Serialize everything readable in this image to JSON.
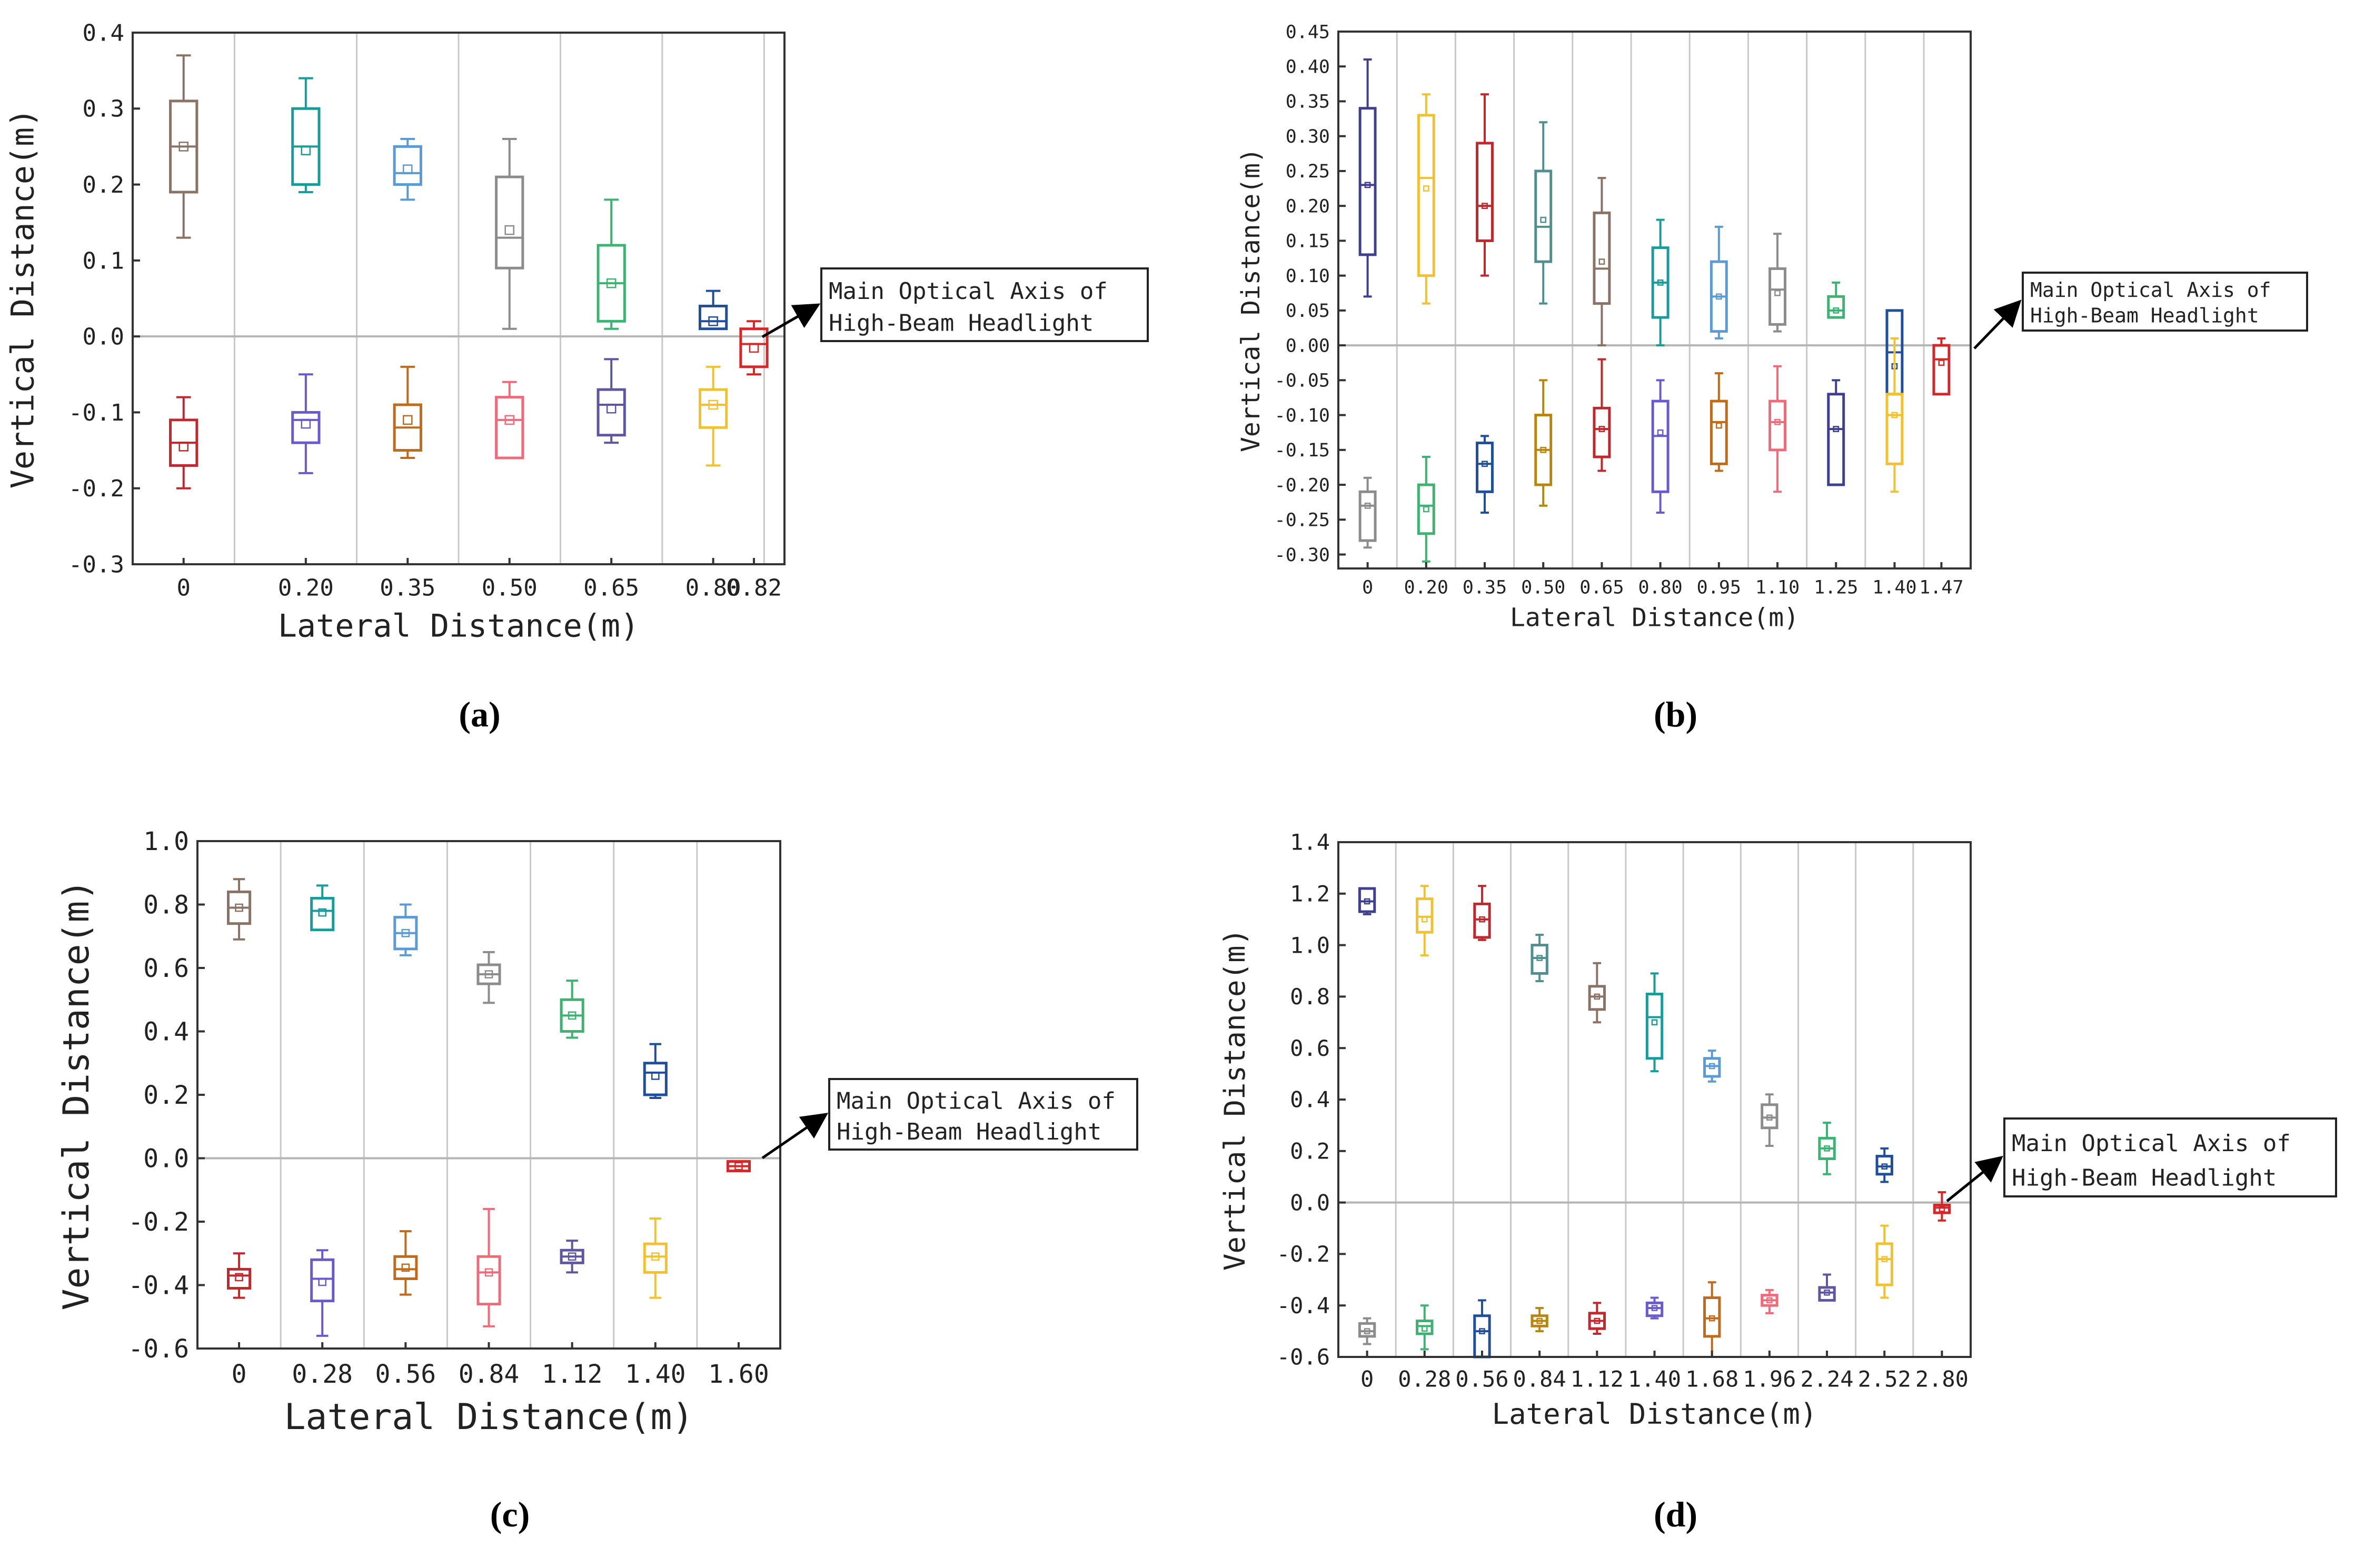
{
  "callout_text": [
    "Main Optical Axis of",
    "High-Beam Headlight"
  ],
  "chart_data": [
    {
      "panel": "(a)",
      "type": "box",
      "xlabel": "Lateral Distance(m)",
      "ylabel": "Vertical Distance(m)",
      "ylim": [
        -0.3,
        0.4
      ],
      "yticks": [
        "0.4",
        "0.3",
        "0.2",
        "0.1",
        "0.0",
        "-0.1",
        "-0.2",
        "-0.3"
      ],
      "ytick_values": [
        0.4,
        0.3,
        0.2,
        0.1,
        0.0,
        -0.1,
        -0.2,
        -0.3
      ],
      "categories": [
        "0",
        "0.20",
        "0.35",
        "0.50",
        "0.65",
        "0.80",
        "0.82"
      ],
      "category_positions": [
        0.3,
        1.5,
        2.5,
        3.5,
        4.5,
        5.5,
        5.9
      ],
      "xlim": [
        -0.2,
        6.2
      ],
      "gridlines_x": [
        0.8,
        2.0,
        3.0,
        4.0,
        5.0,
        6.0
      ],
      "boxes": [
        {
          "x": 0.3,
          "min": 0.13,
          "q1": 0.19,
          "median": 0.25,
          "q3": 0.31,
          "max": 0.37,
          "mean": 0.25,
          "color": "#8b7266"
        },
        {
          "x": 1.5,
          "min": 0.19,
          "q1": 0.2,
          "median": 0.25,
          "q3": 0.3,
          "max": 0.34,
          "mean": 0.245,
          "color": "#1a9b9b"
        },
        {
          "x": 2.5,
          "min": 0.18,
          "q1": 0.2,
          "median": 0.215,
          "q3": 0.25,
          "max": 0.26,
          "mean": 0.22,
          "color": "#5b9bd5"
        },
        {
          "x": 3.5,
          "min": 0.01,
          "q1": 0.09,
          "median": 0.13,
          "q3": 0.21,
          "max": 0.26,
          "mean": 0.14,
          "color": "#8c8c8c"
        },
        {
          "x": 4.5,
          "min": 0.01,
          "q1": 0.02,
          "median": 0.07,
          "q3": 0.12,
          "max": 0.18,
          "mean": 0.07,
          "color": "#3cb371"
        },
        {
          "x": 5.5,
          "min": 0.01,
          "q1": 0.01,
          "median": 0.02,
          "q3": 0.04,
          "max": 0.06,
          "mean": 0.02,
          "color": "#1f4e9b"
        },
        {
          "x": 5.9,
          "min": -0.05,
          "q1": -0.04,
          "median": -0.01,
          "q3": 0.01,
          "max": 0.02,
          "mean": -0.015,
          "color": "#d62728"
        },
        {
          "x": 0.3,
          "min": -0.2,
          "q1": -0.17,
          "median": -0.14,
          "q3": -0.11,
          "max": -0.08,
          "mean": -0.145,
          "color": "#c0282d"
        },
        {
          "x": 1.5,
          "min": -0.18,
          "q1": -0.14,
          "median": -0.11,
          "q3": -0.1,
          "max": -0.05,
          "mean": -0.115,
          "color": "#6a5acd"
        },
        {
          "x": 2.5,
          "min": -0.16,
          "q1": -0.15,
          "median": -0.12,
          "q3": -0.09,
          "max": -0.04,
          "mean": -0.11,
          "color": "#c06a1a"
        },
        {
          "x": 3.5,
          "min": -0.16,
          "q1": -0.16,
          "median": -0.11,
          "q3": -0.08,
          "max": -0.06,
          "mean": -0.11,
          "color": "#f06b7a"
        },
        {
          "x": 4.5,
          "min": -0.14,
          "q1": -0.13,
          "median": -0.09,
          "q3": -0.07,
          "max": -0.03,
          "mean": -0.095,
          "color": "#5e57a0"
        },
        {
          "x": 5.5,
          "min": -0.17,
          "q1": -0.12,
          "median": -0.09,
          "q3": -0.07,
          "max": -0.04,
          "mean": -0.09,
          "color": "#f2c12e"
        }
      ]
    },
    {
      "panel": "(b)",
      "type": "box",
      "xlabel": "Lateral Distance(m)",
      "ylabel": "Vertical Distance(m)",
      "ylim": [
        -0.32,
        0.45
      ],
      "yticks": [
        "0.45",
        "0.40",
        "0.35",
        "0.30",
        "0.25",
        "0.20",
        "0.15",
        "0.10",
        "0.05",
        "0.00",
        "-0.05",
        "-0.10",
        "-0.15",
        "-0.20",
        "-0.25",
        "-0.30"
      ],
      "ytick_values": [
        0.45,
        0.4,
        0.35,
        0.3,
        0.25,
        0.2,
        0.15,
        0.1,
        0.05,
        0.0,
        -0.05,
        -0.1,
        -0.15,
        -0.2,
        -0.25,
        -0.3
      ],
      "categories": [
        "0",
        "0.20",
        "0.35",
        "0.50",
        "0.65",
        "0.80",
        "0.95",
        "1.10",
        "1.25",
        "1.40",
        "1.47"
      ],
      "category_positions": [
        0.5,
        1.5,
        2.5,
        3.5,
        4.5,
        5.5,
        6.5,
        7.5,
        8.5,
        9.5,
        10.3
      ],
      "xlim": [
        0,
        10.8
      ],
      "gridlines_x": [
        1,
        2,
        3,
        4,
        5,
        6,
        7,
        8,
        9,
        10
      ],
      "boxes": [
        {
          "x": 0.5,
          "min": 0.07,
          "q1": 0.13,
          "median": 0.23,
          "q3": 0.34,
          "max": 0.41,
          "mean": 0.23,
          "color": "#3f3f8f"
        },
        {
          "x": 1.5,
          "min": 0.06,
          "q1": 0.1,
          "median": 0.24,
          "q3": 0.33,
          "max": 0.36,
          "mean": 0.225,
          "color": "#f2c12e"
        },
        {
          "x": 2.5,
          "min": 0.1,
          "q1": 0.15,
          "median": 0.2,
          "q3": 0.29,
          "max": 0.36,
          "mean": 0.2,
          "color": "#c0282d"
        },
        {
          "x": 3.5,
          "min": 0.06,
          "q1": 0.12,
          "median": 0.17,
          "q3": 0.25,
          "max": 0.32,
          "mean": 0.18,
          "color": "#4f8f8f"
        },
        {
          "x": 4.5,
          "min": 0.0,
          "q1": 0.06,
          "median": 0.11,
          "q3": 0.19,
          "max": 0.24,
          "mean": 0.12,
          "color": "#8b7266"
        },
        {
          "x": 5.5,
          "min": 0.0,
          "q1": 0.04,
          "median": 0.09,
          "q3": 0.14,
          "max": 0.18,
          "mean": 0.09,
          "color": "#1a9b9b"
        },
        {
          "x": 6.5,
          "min": 0.01,
          "q1": 0.02,
          "median": 0.07,
          "q3": 0.12,
          "max": 0.17,
          "mean": 0.07,
          "color": "#5b9bd5"
        },
        {
          "x": 7.5,
          "min": 0.02,
          "q1": 0.03,
          "median": 0.08,
          "q3": 0.11,
          "max": 0.16,
          "mean": 0.075,
          "color": "#8c8c8c"
        },
        {
          "x": 8.5,
          "min": 0.04,
          "q1": 0.04,
          "median": 0.05,
          "q3": 0.07,
          "max": 0.09,
          "mean": 0.05,
          "color": "#3cb371"
        },
        {
          "x": 9.5,
          "min": -0.07,
          "q1": -0.07,
          "median": -0.01,
          "q3": 0.05,
          "max": 0.05,
          "mean": -0.03,
          "color": "#1f4e9b"
        },
        {
          "x": 10.3,
          "min": -0.07,
          "q1": -0.07,
          "median": -0.02,
          "q3": 0.0,
          "max": 0.01,
          "mean": -0.025,
          "color": "#d62728"
        },
        {
          "x": 0.5,
          "min": -0.29,
          "q1": -0.28,
          "median": -0.23,
          "q3": -0.21,
          "max": -0.19,
          "mean": -0.23,
          "color": "#8c8c8c"
        },
        {
          "x": 1.5,
          "min": -0.31,
          "q1": -0.27,
          "median": -0.23,
          "q3": -0.2,
          "max": -0.16,
          "mean": -0.235,
          "color": "#3cb371"
        },
        {
          "x": 2.5,
          "min": -0.24,
          "q1": -0.21,
          "median": -0.17,
          "q3": -0.14,
          "max": -0.13,
          "mean": -0.17,
          "color": "#1f4e9b"
        },
        {
          "x": 3.5,
          "min": -0.23,
          "q1": -0.2,
          "median": -0.15,
          "q3": -0.1,
          "max": -0.05,
          "mean": -0.15,
          "color": "#b8860b"
        },
        {
          "x": 4.5,
          "min": -0.18,
          "q1": -0.16,
          "median": -0.12,
          "q3": -0.09,
          "max": -0.02,
          "mean": -0.12,
          "color": "#c0282d"
        },
        {
          "x": 5.5,
          "min": -0.24,
          "q1": -0.21,
          "median": -0.13,
          "q3": -0.08,
          "max": -0.05,
          "mean": -0.125,
          "color": "#6a5acd"
        },
        {
          "x": 6.5,
          "min": -0.18,
          "q1": -0.17,
          "median": -0.11,
          "q3": -0.08,
          "max": -0.04,
          "mean": -0.115,
          "color": "#c06a1a"
        },
        {
          "x": 7.5,
          "min": -0.21,
          "q1": -0.15,
          "median": -0.11,
          "q3": -0.08,
          "max": -0.03,
          "mean": -0.11,
          "color": "#f06b7a"
        },
        {
          "x": 8.5,
          "min": -0.2,
          "q1": -0.2,
          "median": -0.12,
          "q3": -0.07,
          "max": -0.05,
          "mean": -0.12,
          "color": "#3f3f8f"
        },
        {
          "x": 9.5,
          "min": -0.21,
          "q1": -0.17,
          "median": -0.1,
          "q3": -0.07,
          "max": 0.01,
          "mean": -0.1,
          "color": "#f2c12e"
        }
      ]
    },
    {
      "panel": "(c)",
      "type": "box",
      "xlabel": "Lateral Distance(m)",
      "ylabel": "Vertical Distance(m)",
      "ylim": [
        -0.6,
        1.0
      ],
      "yticks": [
        "1.0",
        "0.8",
        "0.6",
        "0.4",
        "0.2",
        "0.0",
        "-0.2",
        "-0.4",
        "-0.6"
      ],
      "ytick_values": [
        1.0,
        0.8,
        0.6,
        0.4,
        0.2,
        0.0,
        -0.2,
        -0.4,
        -0.6
      ],
      "categories": [
        "0",
        "0.28",
        "0.56",
        "0.84",
        "1.12",
        "1.40",
        "1.60"
      ],
      "category_positions": [
        0.5,
        1.5,
        2.5,
        3.5,
        4.5,
        5.5,
        6.5
      ],
      "xlim": [
        0,
        7
      ],
      "gridlines_x": [
        1,
        2,
        3,
        4,
        5,
        6
      ],
      "boxes": [
        {
          "x": 0.5,
          "min": 0.69,
          "q1": 0.74,
          "median": 0.79,
          "q3": 0.84,
          "max": 0.88,
          "mean": 0.79,
          "color": "#8b7266"
        },
        {
          "x": 1.5,
          "min": 0.72,
          "q1": 0.72,
          "median": 0.78,
          "q3": 0.82,
          "max": 0.86,
          "mean": 0.775,
          "color": "#1a9b9b"
        },
        {
          "x": 2.5,
          "min": 0.64,
          "q1": 0.66,
          "median": 0.71,
          "q3": 0.76,
          "max": 0.8,
          "mean": 0.71,
          "color": "#5b9bd5"
        },
        {
          "x": 3.5,
          "min": 0.49,
          "q1": 0.55,
          "median": 0.58,
          "q3": 0.61,
          "max": 0.65,
          "mean": 0.58,
          "color": "#8c8c8c"
        },
        {
          "x": 4.5,
          "min": 0.38,
          "q1": 0.4,
          "median": 0.45,
          "q3": 0.5,
          "max": 0.56,
          "mean": 0.45,
          "color": "#3cb371"
        },
        {
          "x": 5.5,
          "min": 0.19,
          "q1": 0.2,
          "median": 0.27,
          "q3": 0.3,
          "max": 0.36,
          "mean": 0.26,
          "color": "#1f4e9b"
        },
        {
          "x": 6.5,
          "min": -0.04,
          "q1": -0.04,
          "median": -0.025,
          "q3": -0.01,
          "max": -0.01,
          "mean": -0.025,
          "color": "#d62728"
        },
        {
          "x": 0.5,
          "min": -0.44,
          "q1": -0.41,
          "median": -0.37,
          "q3": -0.35,
          "max": -0.3,
          "mean": -0.375,
          "color": "#c0282d"
        },
        {
          "x": 1.5,
          "min": -0.56,
          "q1": -0.45,
          "median": -0.38,
          "q3": -0.32,
          "max": -0.29,
          "mean": -0.39,
          "color": "#6a5acd"
        },
        {
          "x": 2.5,
          "min": -0.43,
          "q1": -0.38,
          "median": -0.35,
          "q3": -0.31,
          "max": -0.23,
          "mean": -0.345,
          "color": "#c06a1a"
        },
        {
          "x": 3.5,
          "min": -0.53,
          "q1": -0.46,
          "median": -0.36,
          "q3": -0.31,
          "max": -0.16,
          "mean": -0.36,
          "color": "#f06b7a"
        },
        {
          "x": 4.5,
          "min": -0.36,
          "q1": -0.33,
          "median": -0.31,
          "q3": -0.29,
          "max": -0.26,
          "mean": -0.31,
          "color": "#5e57a0"
        },
        {
          "x": 5.5,
          "min": -0.44,
          "q1": -0.36,
          "median": -0.31,
          "q3": -0.27,
          "max": -0.19,
          "mean": -0.31,
          "color": "#f2c12e"
        }
      ]
    },
    {
      "panel": "(d)",
      "type": "box",
      "xlabel": "Lateral Distance(m)",
      "ylabel": "Vertical Distance(m)",
      "ylim": [
        -0.6,
        1.4
      ],
      "yticks": [
        "1.4",
        "1.2",
        "1.0",
        "0.8",
        "0.6",
        "0.4",
        "0.2",
        "0.0",
        "-0.2",
        "-0.4",
        "-0.6"
      ],
      "ytick_values": [
        1.4,
        1.2,
        1.0,
        0.8,
        0.6,
        0.4,
        0.2,
        0.0,
        -0.2,
        -0.4,
        -0.6
      ],
      "categories": [
        "0",
        "0.28",
        "0.56",
        "0.84",
        "1.12",
        "1.40",
        "1.68",
        "1.96",
        "2.24",
        "2.52",
        "2.80"
      ],
      "category_positions": [
        0.5,
        1.5,
        2.5,
        3.5,
        4.5,
        5.5,
        6.5,
        7.5,
        8.5,
        9.5,
        10.5
      ],
      "xlim": [
        0,
        11
      ],
      "gridlines_x": [
        1,
        2,
        3,
        4,
        5,
        6,
        7,
        8,
        9,
        10
      ],
      "boxes": [
        {
          "x": 0.5,
          "min": 1.12,
          "q1": 1.13,
          "median": 1.17,
          "q3": 1.22,
          "max": 1.22,
          "mean": 1.17,
          "color": "#3f3f8f"
        },
        {
          "x": 1.5,
          "min": 0.96,
          "q1": 1.05,
          "median": 1.11,
          "q3": 1.18,
          "max": 1.23,
          "mean": 1.1,
          "color": "#f2c12e"
        },
        {
          "x": 2.5,
          "min": 1.02,
          "q1": 1.03,
          "median": 1.1,
          "q3": 1.16,
          "max": 1.23,
          "mean": 1.1,
          "color": "#c0282d"
        },
        {
          "x": 3.5,
          "min": 0.86,
          "q1": 0.89,
          "median": 0.95,
          "q3": 1.0,
          "max": 1.04,
          "mean": 0.95,
          "color": "#4f8f8f"
        },
        {
          "x": 4.5,
          "min": 0.7,
          "q1": 0.75,
          "median": 0.8,
          "q3": 0.84,
          "max": 0.93,
          "mean": 0.8,
          "color": "#8b7266"
        },
        {
          "x": 5.5,
          "min": 0.51,
          "q1": 0.56,
          "median": 0.72,
          "q3": 0.81,
          "max": 0.89,
          "mean": 0.7,
          "color": "#1a9b9b"
        },
        {
          "x": 6.5,
          "min": 0.47,
          "q1": 0.49,
          "median": 0.53,
          "q3": 0.56,
          "max": 0.59,
          "mean": 0.53,
          "color": "#5b9bd5"
        },
        {
          "x": 7.5,
          "min": 0.22,
          "q1": 0.29,
          "median": 0.33,
          "q3": 0.38,
          "max": 0.42,
          "mean": 0.33,
          "color": "#8c8c8c"
        },
        {
          "x": 8.5,
          "min": 0.11,
          "q1": 0.17,
          "median": 0.21,
          "q3": 0.25,
          "max": 0.31,
          "mean": 0.21,
          "color": "#3cb371"
        },
        {
          "x": 9.5,
          "min": 0.08,
          "q1": 0.11,
          "median": 0.14,
          "q3": 0.18,
          "max": 0.21,
          "mean": 0.14,
          "color": "#1f4e9b"
        },
        {
          "x": 10.5,
          "min": -0.07,
          "q1": -0.04,
          "median": -0.02,
          "q3": -0.01,
          "max": 0.04,
          "mean": -0.025,
          "color": "#d62728"
        },
        {
          "x": 0.5,
          "min": -0.55,
          "q1": -0.52,
          "median": -0.5,
          "q3": -0.47,
          "max": -0.45,
          "mean": -0.5,
          "color": "#8c8c8c"
        },
        {
          "x": 1.5,
          "min": -0.57,
          "q1": -0.51,
          "median": -0.48,
          "q3": -0.46,
          "max": -0.4,
          "mean": -0.49,
          "color": "#3cb371"
        },
        {
          "x": 2.5,
          "min": -0.6,
          "q1": -0.6,
          "median": -0.5,
          "q3": -0.44,
          "max": -0.38,
          "mean": -0.5,
          "color": "#1f4e9b"
        },
        {
          "x": 3.5,
          "min": -0.5,
          "q1": -0.48,
          "median": -0.46,
          "q3": -0.44,
          "max": -0.41,
          "mean": -0.46,
          "color": "#b8860b"
        },
        {
          "x": 4.5,
          "min": -0.51,
          "q1": -0.49,
          "median": -0.46,
          "q3": -0.43,
          "max": -0.39,
          "mean": -0.46,
          "color": "#c0282d"
        },
        {
          "x": 5.5,
          "min": -0.45,
          "q1": -0.44,
          "median": -0.41,
          "q3": -0.39,
          "max": -0.37,
          "mean": -0.41,
          "color": "#6a5acd"
        },
        {
          "x": 6.5,
          "min": -0.6,
          "q1": -0.52,
          "median": -0.45,
          "q3": -0.37,
          "max": -0.31,
          "mean": -0.45,
          "color": "#c06a1a"
        },
        {
          "x": 7.5,
          "min": -0.43,
          "q1": -0.4,
          "median": -0.38,
          "q3": -0.36,
          "max": -0.34,
          "mean": -0.38,
          "color": "#f06b7a"
        },
        {
          "x": 8.5,
          "min": -0.38,
          "q1": -0.38,
          "median": -0.35,
          "q3": -0.33,
          "max": -0.28,
          "mean": -0.35,
          "color": "#5e57a0"
        },
        {
          "x": 9.5,
          "min": -0.37,
          "q1": -0.32,
          "median": -0.22,
          "q3": -0.16,
          "max": -0.09,
          "mean": -0.22,
          "color": "#f2c12e"
        }
      ]
    }
  ]
}
